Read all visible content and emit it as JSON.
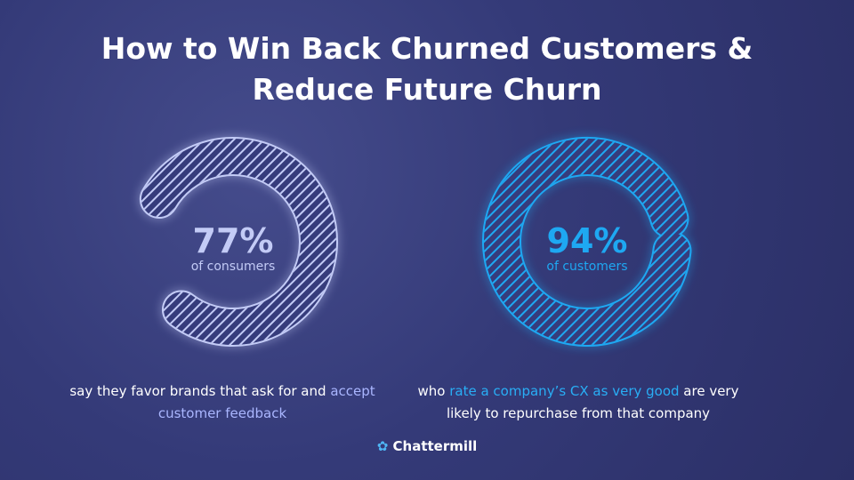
{
  "header": {
    "title_lines": [
      "How to Win Back Churned Customers &",
      "Reduce Future Churn"
    ]
  },
  "chart_data": [
    {
      "type": "ring",
      "value": 77,
      "value_label": "77%",
      "subtitle": "of consumers",
      "color": "#c3cbf6",
      "highlight_color": "#aab6ff",
      "description": [
        {
          "text": "say they favor brands that ask for and ",
          "highlight": false
        },
        {
          "text": "accept customer feedback",
          "highlight": true
        }
      ]
    },
    {
      "type": "ring",
      "value": 94,
      "value_label": "94%",
      "subtitle": "of customers",
      "color": "#1ea8f2",
      "highlight_color": "#29aef5",
      "description": [
        {
          "text": "who ",
          "highlight": false
        },
        {
          "text": "rate a company’s CX as very good",
          "highlight": true
        },
        {
          "text": " are very likely to repurchase from that company",
          "highlight": false
        }
      ]
    }
  ],
  "footer": {
    "brand": "Chattermill"
  }
}
